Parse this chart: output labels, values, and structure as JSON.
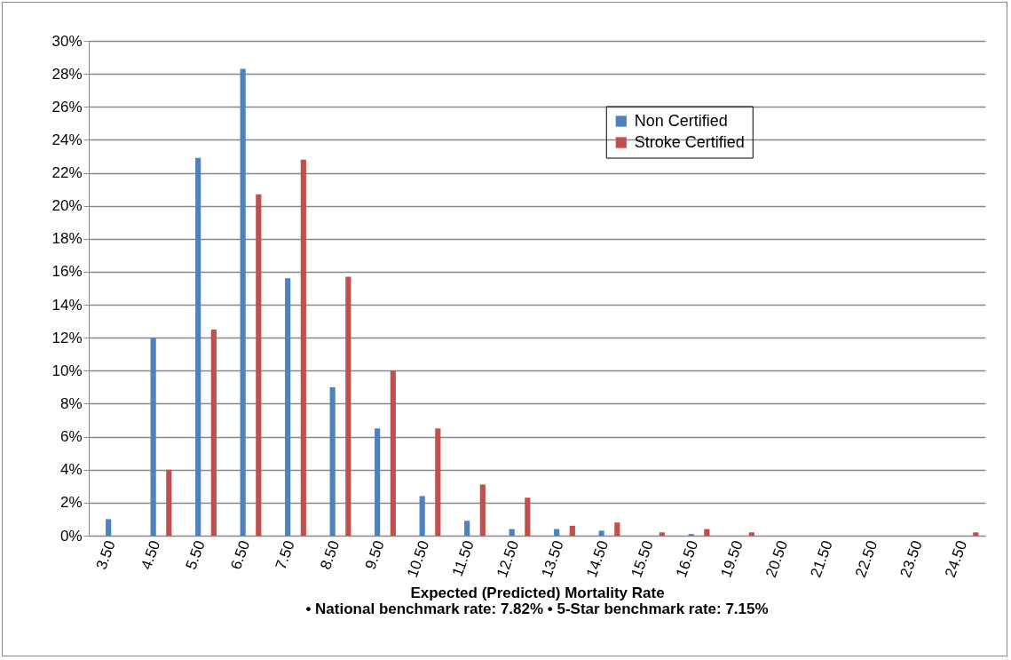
{
  "chart_data": {
    "type": "bar",
    "xlabel": "Expected (Predicted) Mortality Rate",
    "annotations": [
      "• National benchmark rate: 7.82%  • 5-Star benchmark rate: 7.15%"
    ],
    "categories": [
      "3.50",
      "4.50",
      "5.50",
      "6.50",
      "7.50",
      "8.50",
      "9.50",
      "10.50",
      "11.50",
      "12.50",
      "13.50",
      "14.50",
      "15.50",
      "16.50",
      "19.50",
      "20.50",
      "21.50",
      "22.50",
      "23.50",
      "24.50"
    ],
    "series": [
      {
        "name": "Non Certified",
        "color": "#4f81bd",
        "values": [
          1.0,
          12.0,
          22.9,
          28.3,
          15.6,
          9.0,
          6.5,
          2.4,
          0.9,
          0.4,
          0.4,
          0.3,
          0,
          0.1,
          0,
          0,
          0,
          0,
          0,
          0
        ]
      },
      {
        "name": "Stroke Certified",
        "color": "#c0504d",
        "values": [
          0,
          4.0,
          12.5,
          20.7,
          22.8,
          15.7,
          10.0,
          6.5,
          3.1,
          2.3,
          0.6,
          0.8,
          0.2,
          0.4,
          0.2,
          0,
          0,
          0,
          0,
          0.2
        ]
      }
    ],
    "ylim": [
      0,
      30
    ],
    "yticks": [
      {
        "value": 0,
        "label": "0%"
      },
      {
        "value": 2,
        "label": "2%"
      },
      {
        "value": 4,
        "label": "4%"
      },
      {
        "value": 6,
        "label": "6%"
      },
      {
        "value": 8,
        "label": "8%"
      },
      {
        "value": 10,
        "label": "10%"
      },
      {
        "value": 12,
        "label": "12%"
      },
      {
        "value": 14,
        "label": "14%"
      },
      {
        "value": 16,
        "label": "16%"
      },
      {
        "value": 18,
        "label": "18%"
      },
      {
        "value": 20,
        "label": "20%"
      },
      {
        "value": 22,
        "label": "22%"
      },
      {
        "value": 24,
        "label": "24%"
      },
      {
        "value": 26,
        "label": "26%"
      },
      {
        "value": 28,
        "label": "28%"
      },
      {
        "value": 30,
        "label": "30%"
      }
    ],
    "grid": "y",
    "legend": "top right"
  }
}
